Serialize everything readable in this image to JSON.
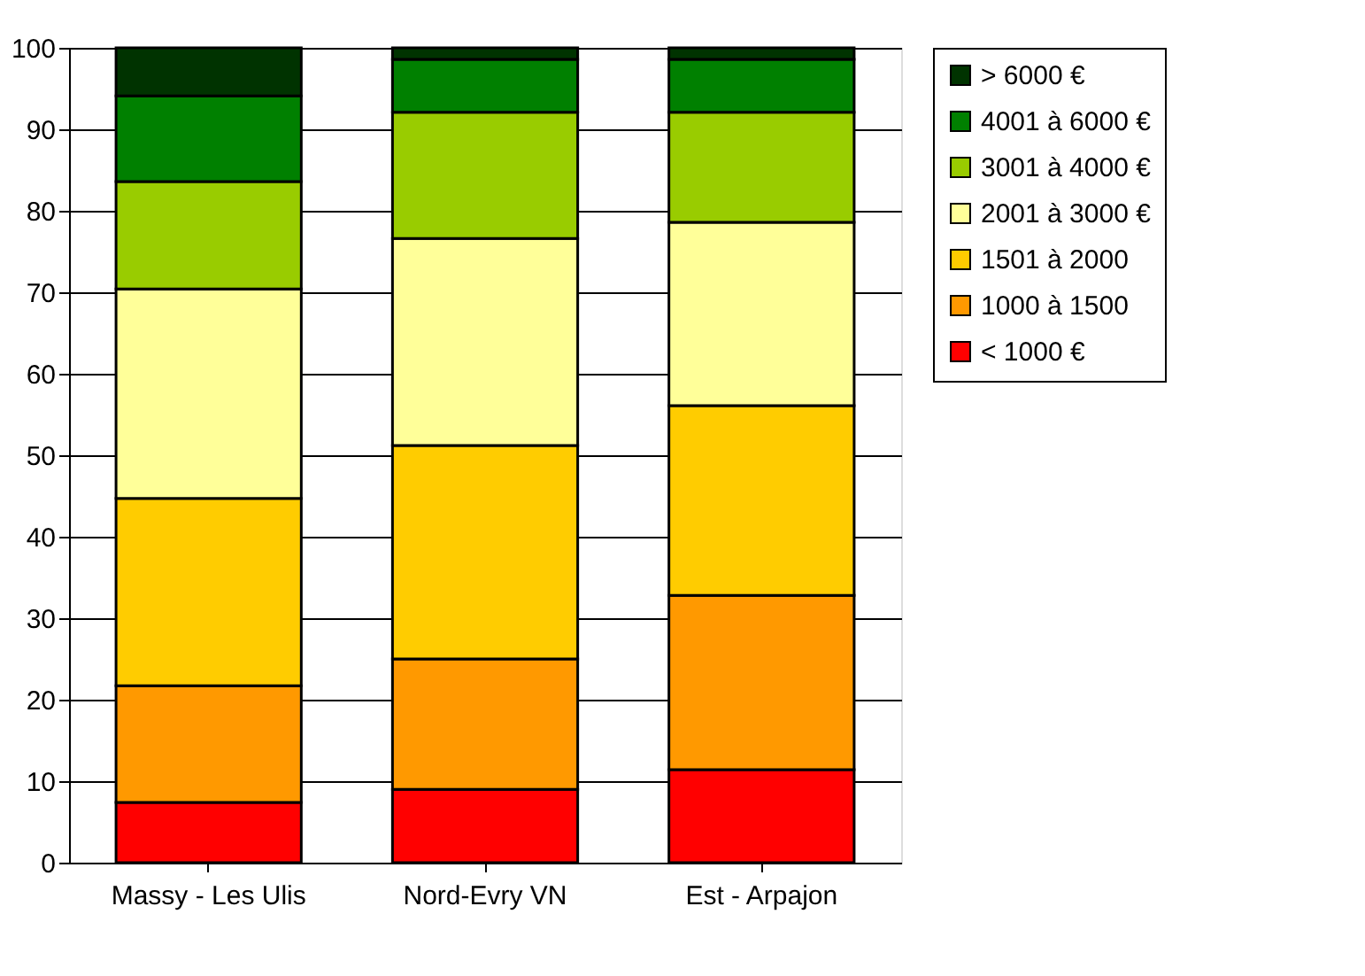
{
  "chart_data": {
    "type": "bar",
    "stacked": true,
    "categories": [
      "Massy - Les Ulis",
      "Nord-Evry VN",
      "Est - Arpajon"
    ],
    "series": [
      {
        "name": "< 1000 €",
        "color": "#ff0000",
        "values": [
          7.4,
          9.0,
          11.4
        ]
      },
      {
        "name": "1000 à 1500",
        "color": "#ff9900",
        "values": [
          14.3,
          16.0,
          21.4
        ]
      },
      {
        "name": "1501 à 2000",
        "color": "#ffcc00",
        "values": [
          23.0,
          26.2,
          23.3
        ]
      },
      {
        "name": "2001 à 3000 €",
        "color": "#ffff99",
        "values": [
          25.7,
          25.4,
          22.5
        ]
      },
      {
        "name": "3001 à 4000 €",
        "color": "#99cc00",
        "values": [
          13.2,
          15.5,
          13.5
        ]
      },
      {
        "name": "4001 à 6000 €",
        "color": "#008000",
        "values": [
          10.5,
          6.5,
          6.5
        ]
      },
      {
        "name": "> 6000 €",
        "color": "#003300",
        "values": [
          5.9,
          1.4,
          1.4
        ]
      }
    ],
    "ylim": [
      0,
      100
    ],
    "yticks": [
      0,
      10,
      20,
      30,
      40,
      50,
      60,
      70,
      80,
      90,
      100
    ],
    "grid": "y",
    "legend": "right"
  }
}
